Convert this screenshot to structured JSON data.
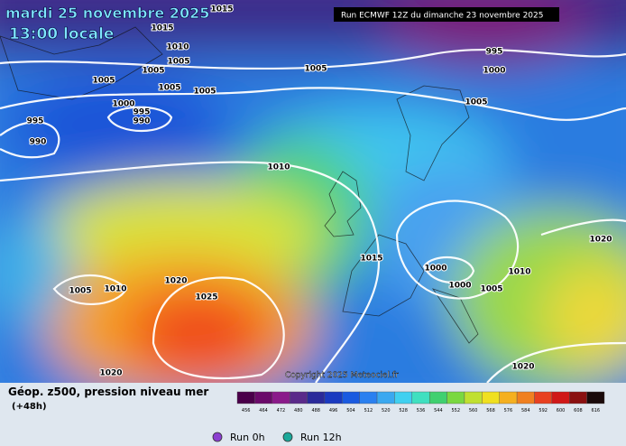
{
  "header": {
    "date": "mardi 25 novembre 2025",
    "time": "13:00 locale",
    "run": "Run ECMWF 12Z du dimanche 23 novembre 2025",
    "copyright": "Copyright 2025 Meteociel.fr"
  },
  "isobars": {
    "labels": [
      "1015",
      "1015",
      "1010",
      "1005",
      "1005",
      "1005",
      "1005",
      "1005",
      "1005",
      "995",
      "1000",
      "1005",
      "1000",
      "995",
      "990",
      "995",
      "990",
      "1010",
      "1015",
      "1000",
      "1000",
      "1005",
      "1010",
      "1020",
      "1005",
      "1010",
      "1020",
      "1025",
      "1020",
      "1020"
    ]
  },
  "legend": {
    "title": "Géop. z500, pression niveau mer",
    "lead": "(+48h)",
    "scale": [
      "456",
      "464",
      "472",
      "480",
      "488",
      "496",
      "504",
      "512",
      "520",
      "528",
      "536",
      "544",
      "552",
      "560",
      "568",
      "576",
      "584",
      "592",
      "600",
      "608",
      "616"
    ],
    "colors": [
      "#4a004a",
      "#6a0a6a",
      "#8a1a8a",
      "#5a2a8a",
      "#2a2a9a",
      "#1a3ac0",
      "#1a5ae0",
      "#2a80f0",
      "#3aa8f0",
      "#40d0f0",
      "#40e0c0",
      "#40d070",
      "#7ad840",
      "#c0e030",
      "#f0e020",
      "#f5b020",
      "#f08020",
      "#e84020",
      "#d01818",
      "#8a1010",
      "#1a0a0a"
    ],
    "runs": [
      "Run 0h",
      "Run 12h"
    ]
  }
}
